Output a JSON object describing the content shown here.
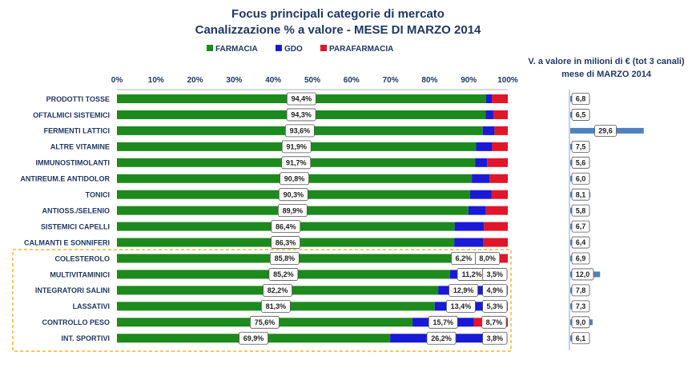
{
  "title_line1": "Focus principali categorie di mercato",
  "title_line2": "Canalizzazione % a valore  - MESE DI MARZO 2014",
  "legend": [
    {
      "label": "FARMACIA",
      "color": "#1d8a1d"
    },
    {
      "label": "GDO",
      "color": "#1a1ad6"
    },
    {
      "label": "PARAFARMACIA",
      "color": "#e0162b"
    }
  ],
  "side_title_line1": "V. a valore in milioni di € (tot 3 canali)",
  "side_title_line2": "mese di MARZO 2014",
  "colors": {
    "farmacia": "#1d8a1d",
    "gdo": "#1a1ad6",
    "parafarmacia": "#e0162b",
    "side_bar": "#4f81bd",
    "title": "#1f3864",
    "highlight_border": "#f0a30a"
  },
  "chart_data": [
    {
      "type": "bar",
      "orientation": "horizontal",
      "stacked": true,
      "x_ticks": [
        "0%",
        "10%",
        "20%",
        "30%",
        "40%",
        "50%",
        "60%",
        "70%",
        "80%",
        "90%",
        "100%"
      ],
      "xlim": [
        0,
        100
      ],
      "categories": [
        "PRODOTTI TOSSE",
        "OFTALMICI SISTEMICI",
        "FERMENTI LATTICI",
        "ALTRE VITAMINE",
        "IMMUNOSTIMOLANTI",
        "ANTIREUM.E ANTIDOLOR",
        "TONICI",
        "ANTIOSS./SELENIO",
        "SISTEMICI CAPELLI",
        "CALMANTI E SONNIFERI",
        "COLESTEROLO",
        "MULTIVITAMINICI",
        "INTEGRATORI SALINI",
        "LASSATIVI",
        "CONTROLLO PESO",
        "INT. SPORTIVI"
      ],
      "series": [
        {
          "name": "FARMACIA",
          "values": [
            94.4,
            94.3,
            93.6,
            91.9,
            91.7,
            90.8,
            90.3,
            89.9,
            86.4,
            86.3,
            85.8,
            85.2,
            82.2,
            81.3,
            75.6,
            69.9
          ]
        },
        {
          "name": "GDO",
          "values": [
            1.5,
            2.0,
            3.0,
            4.0,
            3.0,
            4.5,
            5.5,
            4.5,
            7.5,
            7.5,
            6.2,
            11.2,
            12.9,
            13.4,
            15.7,
            26.2
          ]
        },
        {
          "name": "PARAFARMACIA",
          "values": [
            4.1,
            3.7,
            3.4,
            4.1,
            5.3,
            4.7,
            4.2,
            5.6,
            6.1,
            6.2,
            8.0,
            3.5,
            4.9,
            5.3,
            8.7,
            3.8
          ]
        }
      ],
      "farmacia_labels": [
        "94,4%",
        "94,3%",
        "93,6%",
        "91,9%",
        "91,7%",
        "90,8%",
        "90,3%",
        "89,9%",
        "86,4%",
        "86,3%",
        "85,8%",
        "85,2%",
        "82,2%",
        "81,3%",
        "75,6%",
        "69,9%"
      ],
      "gdo_labels": [
        "",
        "",
        "",
        "",
        "",
        "",
        "",
        "",
        "",
        "",
        "6,2%",
        "11,2%",
        "12,9%",
        "13,4%",
        "15,7%",
        "26,2%"
      ],
      "parafarmacia_labels": [
        "",
        "",
        "",
        "",
        "",
        "",
        "",
        "",
        "",
        "",
        "8,0%",
        "3,5%",
        "4,9%",
        "5,3%",
        "8,7%",
        "3,8%"
      ],
      "highlighted_categories": [
        "COLESTEROLO",
        "MULTIVITAMINICI",
        "INTEGRATORI SALINI",
        "LASSATIVI",
        "CONTROLLO PESO",
        "INT. SPORTIVI"
      ],
      "grid": false,
      "legend_position": "top"
    },
    {
      "type": "bar",
      "orientation": "horizontal",
      "unit": "milioni di €",
      "categories": [
        "PRODOTTI TOSSE",
        "OFTALMICI SISTEMICI",
        "FERMENTI LATTICI",
        "ALTRE VITAMINE",
        "IMMUNOSTIMOLANTI",
        "ANTIREUM.E ANTIDOLOR",
        "TONICI",
        "ANTIOSS./SELENIO",
        "SISTEMICI CAPELLI",
        "CALMANTI E SONNIFERI",
        "COLESTEROLO",
        "MULTIVITAMINICI",
        "INTEGRATORI SALINI",
        "LASSATIVI",
        "CONTROLLO PESO",
        "INT. SPORTIVI"
      ],
      "values": [
        6.8,
        6.5,
        29.6,
        7.5,
        5.6,
        6.0,
        8.1,
        5.8,
        6.7,
        6.4,
        6.9,
        12.0,
        7.8,
        7.3,
        9.0,
        6.1
      ],
      "value_labels": [
        "6,8",
        "6,5",
        "29,6",
        "7,5",
        "5,6",
        "6,0",
        "8,1",
        "5,8",
        "6,7",
        "6,4",
        "6,9",
        "12,0",
        "7,8",
        "7,3",
        "9,0",
        "6,1"
      ]
    }
  ]
}
